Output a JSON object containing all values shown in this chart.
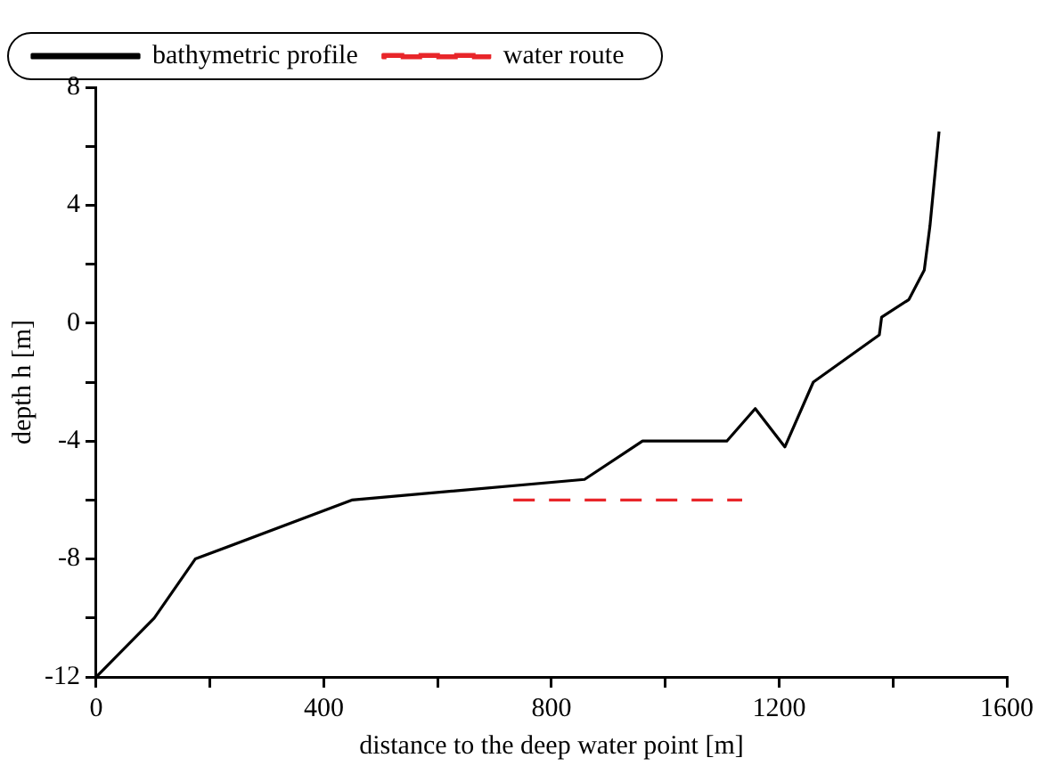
{
  "chart_data": {
    "type": "line",
    "xlabel": "distance to the deep water point [m]",
    "ylabel": "depth h [m]",
    "xlim": [
      0,
      1600
    ],
    "xticks": [
      0,
      {
        "value": 200,
        "label": null
      },
      400,
      {
        "value": 600,
        "label": null
      },
      800,
      {
        "value": 1000,
        "label": null
      },
      1200,
      {
        "value": 1400,
        "label": null
      },
      1600
    ],
    "ylim": [
      -12,
      8
    ],
    "yticks": [
      -12,
      {
        "value": -10,
        "label": null
      },
      -8,
      {
        "value": -6,
        "label": null
      },
      -4,
      {
        "value": -2,
        "label": null
      },
      0,
      {
        "value": 2,
        "label": null
      },
      4,
      {
        "value": 6,
        "label": null
      },
      8
    ],
    "grid": false,
    "legend": "top left",
    "marker": "none",
    "series": [
      {
        "name": "bathymetric profile",
        "color": "#000000",
        "line_style": "solid",
        "x": [
          0,
          102,
          174,
          449,
          858,
          960,
          1108,
          1158,
          1210,
          1260,
          1376,
          1380,
          1428,
          1455,
          1465,
          1481
        ],
        "values": [
          -12,
          -10,
          -8,
          -6,
          -5.3,
          -4,
          -4,
          -2.9,
          -4.2,
          -2,
          -0.4,
          0.2,
          0.8,
          1.8,
          3.3,
          6.5
        ]
      },
      {
        "name": "water route",
        "color": "#e8262a",
        "line_style": "dashed",
        "x": [
          733,
          1135
        ],
        "values": [
          -6,
          -6
        ]
      }
    ]
  }
}
